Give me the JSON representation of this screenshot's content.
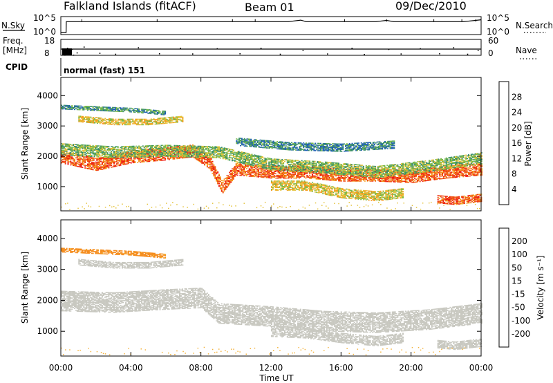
{
  "header": {
    "title": "Falkland Islands (fitACF)",
    "beam": "Beam 01",
    "date": "09/Dec/2010"
  },
  "nsky_panel": {
    "left_label": "N.Sky",
    "left_ticks": [
      "10^5",
      "10^0"
    ],
    "right_ticks": [
      "10^5",
      "10^0"
    ],
    "right_label": "N.Search"
  },
  "freq_panel": {
    "left_label_1": "Freq.",
    "left_label_2": "[MHz]",
    "left_ticks": [
      "18",
      "8"
    ],
    "right_ticks": [
      "60",
      "0"
    ],
    "right_label": "Nave",
    "freq_value_mhz": 12
  },
  "cpid_panel": {
    "label": "CPID",
    "mode_text": "normal (fast) 151"
  },
  "x_axis": {
    "ticks": [
      "00:00",
      "04:00",
      "08:00",
      "12:00",
      "16:00",
      "20:00",
      "00:00"
    ],
    "label": "Time UT",
    "range_hours": [
      0,
      24
    ]
  },
  "power_panel": {
    "ylabel": "Slant Range [km]",
    "yticks": [
      "4000",
      "3000",
      "2000",
      "1000"
    ],
    "ylim": [
      200,
      4600
    ],
    "colorbar_label": "Power [dB]",
    "colorbar_ticks": [
      "28",
      "24",
      "20",
      "16",
      "12",
      "8",
      "4"
    ],
    "colorbar_range": [
      0,
      32
    ],
    "colors": [
      "#0000ff",
      "#1f5fb4",
      "#3a8f6a",
      "#79b94a",
      "#e4c23a",
      "#f59a1c",
      "#f05a16",
      "#ee1b12"
    ]
  },
  "velocity_panel": {
    "ylabel": "Slant Range [km]",
    "yticks": [
      "4000",
      "3000",
      "2000",
      "1000"
    ],
    "ylim": [
      200,
      4600
    ],
    "colorbar_label": "Velocity [m s⁻¹]",
    "colorbar_ticks": [
      "200",
      "100",
      "50",
      "15",
      "-15",
      "-50",
      "-100",
      "-200"
    ],
    "colors": [
      "#1030d0",
      "#3a6ad0",
      "#2e7d32",
      "#66cc33",
      "#c8c8c0",
      "#f4b23a",
      "#f58c1c",
      "#f05a16",
      "#ee1b12"
    ]
  },
  "chart_data": [
    {
      "type": "line",
      "title": "N.Sky / N.Search",
      "x_hours": [
        0,
        0.3,
        0.31,
        1,
        2,
        3,
        4,
        5,
        6,
        7,
        8,
        9,
        10,
        11,
        12,
        13,
        13.7,
        14,
        15,
        16,
        17,
        18,
        18.6,
        19,
        20,
        21,
        22,
        23,
        24
      ],
      "series": [
        {
          "name": "N.Sky",
          "log10_values": [
            0.2,
            0.2,
            3.8,
            3.8,
            3.8,
            3.8,
            3.8,
            3.8,
            3.8,
            3.8,
            3.8,
            3.8,
            3.8,
            3.8,
            3.8,
            3.8,
            4.3,
            3.8,
            3.8,
            3.8,
            3.8,
            3.8,
            4.2,
            3.8,
            3.8,
            3.8,
            3.8,
            3.8,
            4.4
          ]
        }
      ]
    },
    {
      "type": "scatter",
      "title": "Freq / Nave",
      "freq_mhz": 12,
      "nave_points": [
        [
          0.1,
          8
        ],
        [
          0.2,
          0
        ],
        [
          0.3,
          20
        ],
        [
          0.35,
          30
        ],
        [
          0.45,
          5
        ],
        [
          0.55,
          15
        ],
        [
          0.6,
          25
        ],
        [
          0.7,
          0
        ],
        [
          0.9,
          10
        ],
        [
          1.3,
          35
        ],
        [
          2.2,
          8
        ],
        [
          3.1,
          4
        ],
        [
          4.4,
          32
        ],
        [
          5.6,
          6
        ],
        [
          6.8,
          30
        ],
        [
          7.5,
          5
        ],
        [
          8.9,
          28
        ],
        [
          10.2,
          6
        ],
        [
          11.4,
          30
        ],
        [
          12.5,
          4
        ],
        [
          13.8,
          20
        ],
        [
          15.2,
          5
        ],
        [
          16.6,
          30
        ],
        [
          17.3,
          3
        ],
        [
          18.7,
          25
        ],
        [
          19.4,
          5
        ],
        [
          20.5,
          28
        ],
        [
          21.6,
          6
        ],
        [
          22.4,
          32
        ],
        [
          23.2,
          4
        ],
        [
          23.8,
          20
        ]
      ]
    },
    {
      "type": "heatmap",
      "title": "Power [dB]",
      "x_unit": "hours UT",
      "y_unit": "km",
      "bands": [
        {
          "x": [
            0,
            2,
            4,
            6,
            7.5,
            8.5,
            9.2,
            10,
            12,
            14,
            16,
            18,
            20,
            22,
            24
          ],
          "y": [
            2000,
            1750,
            2000,
            2100,
            2200,
            1800,
            1000,
            1600,
            1500,
            1500,
            1400,
            1400,
            1350,
            1500,
            1600
          ],
          "halfwidth": 200,
          "value": 26
        },
        {
          "x": [
            0,
            3,
            6,
            9,
            12,
            15,
            18,
            21,
            24
          ],
          "y": [
            2250,
            2150,
            2200,
            2150,
            1750,
            1650,
            1500,
            1700,
            1950
          ],
          "halfwidth": 180,
          "value": 14
        },
        {
          "x": [
            12,
            14,
            16,
            18,
            19.5
          ],
          "y": [
            1050,
            1050,
            800,
            700,
            800
          ],
          "halfwidth": 150,
          "value": 18
        },
        {
          "x": [
            21.5,
            22.5,
            24
          ],
          "y": [
            600,
            550,
            650
          ],
          "halfwidth": 120,
          "value": 26
        },
        {
          "x": [
            0,
            2,
            4,
            6
          ],
          "y": [
            3650,
            3600,
            3550,
            3450
          ],
          "halfwidth": 70,
          "value": 10
        },
        {
          "x": [
            1,
            3,
            5,
            7
          ],
          "y": [
            3250,
            3150,
            3150,
            3250
          ],
          "halfwidth": 90,
          "value": 18
        },
        {
          "x": [
            10,
            13,
            16,
            19
          ],
          "y": [
            2500,
            2350,
            2300,
            2400
          ],
          "halfwidth": 120,
          "value": 9
        }
      ]
    },
    {
      "type": "heatmap",
      "title": "Velocity [m s⁻¹]",
      "x_unit": "hours UT",
      "y_unit": "km",
      "bands": [
        {
          "x": [
            0,
            3,
            6,
            8,
            9,
            12,
            15,
            18,
            21,
            24
          ],
          "y": [
            2000,
            1950,
            2050,
            2100,
            1600,
            1500,
            1350,
            1300,
            1400,
            1600
          ],
          "halfwidth": 320,
          "value": 0
        },
        {
          "x": [
            0,
            2,
            4,
            6
          ],
          "y": [
            3650,
            3600,
            3550,
            3450
          ],
          "halfwidth": 70,
          "value": -60
        },
        {
          "x": [
            1,
            3,
            5,
            7
          ],
          "y": [
            3250,
            3150,
            3150,
            3250
          ],
          "halfwidth": 90,
          "value": 0
        },
        {
          "x": [
            21.5,
            22.5,
            24
          ],
          "y": [
            600,
            550,
            650
          ],
          "halfwidth": 120,
          "value": 0
        },
        {
          "x": [
            12,
            14,
            16,
            18,
            19.5
          ],
          "y": [
            1000,
            950,
            800,
            700,
            800
          ],
          "halfwidth": 150,
          "value": 0
        }
      ]
    }
  ]
}
